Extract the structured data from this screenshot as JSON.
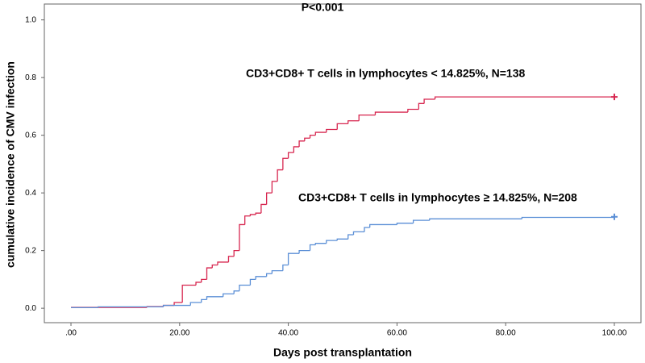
{
  "chart_data": {
    "type": "step",
    "annotation": "P<0.001",
    "xlabel": "Days post transplantation",
    "ylabel": "cumulative incidence of CMV infection",
    "xlim": [
      -4.9,
      104.9
    ],
    "ylim": [
      -0.05,
      1.055
    ],
    "xticks": [
      {
        "value": 0,
        "label": ".00"
      },
      {
        "value": 20,
        "label": "20.00"
      },
      {
        "value": 40,
        "label": "40.00"
      },
      {
        "value": 60,
        "label": "60.00"
      },
      {
        "value": 80,
        "label": "80.00"
      },
      {
        "value": 100,
        "label": "100.00"
      }
    ],
    "yticks": [
      {
        "value": 0,
        "label": "0.0"
      },
      {
        "value": 0.2,
        "label": "0.2"
      },
      {
        "value": 0.4,
        "label": "0.4"
      },
      {
        "value": 0.6,
        "label": "0.6"
      },
      {
        "value": 0.8,
        "label": "0.8"
      },
      {
        "value": 1,
        "label": "1.0"
      }
    ],
    "series": [
      {
        "name": "CD3+CD8+ T cells in lymphocytes < 14.825%, N=138",
        "color": "#d7264f",
        "x": [
          0,
          14,
          17,
          19,
          20.5,
          23,
          24,
          25,
          26,
          27,
          29,
          30,
          31,
          32,
          33,
          34,
          35,
          36,
          37,
          38,
          39,
          40,
          41,
          42,
          43,
          44,
          45,
          47,
          49,
          51,
          53,
          56,
          62,
          64,
          65,
          67,
          100
        ],
        "values": [
          0.003,
          0.006,
          0.01,
          0.02,
          0.08,
          0.09,
          0.1,
          0.14,
          0.15,
          0.16,
          0.18,
          0.2,
          0.29,
          0.32,
          0.325,
          0.33,
          0.36,
          0.4,
          0.44,
          0.48,
          0.52,
          0.54,
          0.56,
          0.58,
          0.59,
          0.6,
          0.61,
          0.62,
          0.64,
          0.65,
          0.67,
          0.68,
          0.69,
          0.71,
          0.725,
          0.733,
          0.733
        ]
      },
      {
        "name": "CD3+CD8+ T cells in lymphocytes ≥ 14.825%, N=208",
        "color": "#5b8fd6",
        "x": [
          0,
          5,
          17,
          22,
          24,
          25,
          28,
          30,
          31,
          33,
          34,
          36,
          37,
          39,
          40,
          42,
          44,
          45,
          47,
          49,
          51,
          52,
          54,
          55,
          60,
          63,
          66,
          83,
          100
        ],
        "values": [
          0.002,
          0.005,
          0.01,
          0.02,
          0.03,
          0.04,
          0.05,
          0.06,
          0.08,
          0.1,
          0.11,
          0.12,
          0.13,
          0.15,
          0.19,
          0.2,
          0.22,
          0.225,
          0.235,
          0.24,
          0.255,
          0.265,
          0.28,
          0.29,
          0.295,
          0.305,
          0.31,
          0.315,
          0.317
        ]
      }
    ]
  }
}
